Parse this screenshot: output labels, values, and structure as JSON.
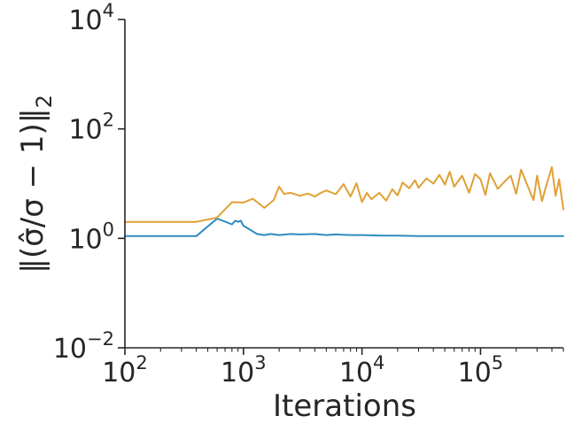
{
  "chart_data": {
    "type": "line",
    "title": "",
    "xlabel": "Iterations",
    "ylabel": "‖(σ̂/σ − 1)‖",
    "ylabel_subscript": "2",
    "xscale": "log",
    "yscale": "log",
    "xlim": [
      100,
      500000
    ],
    "ylim": [
      0.01,
      10000
    ],
    "grid": false,
    "legend": "none",
    "x_ticks": [
      {
        "value": 100,
        "base": "10",
        "exp": "2"
      },
      {
        "value": 1000,
        "base": "10",
        "exp": "3"
      },
      {
        "value": 10000,
        "base": "10",
        "exp": "4"
      },
      {
        "value": 100000,
        "base": "10",
        "exp": "5"
      }
    ],
    "y_ticks": [
      {
        "value": 0.01,
        "base": "10",
        "exp": "−2"
      },
      {
        "value": 1,
        "base": "10",
        "exp": "0"
      },
      {
        "value": 100,
        "base": "10",
        "exp": "2"
      },
      {
        "value": 10000,
        "base": "10",
        "exp": "4"
      }
    ],
    "series": [
      {
        "color": "#2e8bbf",
        "x": [
          100,
          400,
          600,
          800,
          850,
          900,
          950,
          1000,
          1100,
          1300,
          1500,
          1700,
          2000,
          2500,
          3000,
          4000,
          5000,
          6000,
          8000,
          10000,
          15000,
          20000,
          30000,
          50000,
          80000,
          100000,
          200000,
          300000,
          500000
        ],
        "y": [
          1.1,
          1.1,
          2.3,
          1.8,
          2.1,
          2.0,
          2.1,
          1.7,
          1.5,
          1.2,
          1.15,
          1.2,
          1.15,
          1.2,
          1.18,
          1.2,
          1.15,
          1.18,
          1.15,
          1.15,
          1.12,
          1.12,
          1.1,
          1.1,
          1.1,
          1.1,
          1.1,
          1.1,
          1.1
        ]
      },
      {
        "color": "#e0a035",
        "x": [
          100,
          400,
          600,
          800,
          1000,
          1200,
          1500,
          1800,
          2000,
          2200,
          2500,
          3000,
          3500,
          4000,
          4500,
          5000,
          6000,
          7000,
          8000,
          9000,
          10000,
          11000,
          12000,
          14000,
          16000,
          18000,
          20000,
          22000,
          25000,
          28000,
          30000,
          35000,
          40000,
          45000,
          50000,
          55000,
          60000,
          70000,
          80000,
          90000,
          100000,
          110000,
          120000,
          140000,
          160000,
          180000,
          200000,
          220000,
          250000,
          280000,
          300000,
          330000,
          360000,
          400000,
          430000,
          460000,
          500000
        ],
        "y": [
          2.0,
          2.0,
          2.4,
          4.6,
          4.5,
          5.3,
          3.6,
          5.0,
          8.8,
          6.5,
          6.8,
          6.0,
          6.6,
          5.8,
          6.8,
          7.5,
          6.4,
          9.8,
          5.8,
          10.2,
          4.6,
          6.8,
          5.2,
          6.8,
          4.9,
          7.9,
          6.1,
          10.5,
          8.2,
          11.5,
          8.4,
          12.5,
          10.0,
          14.5,
          9.6,
          16.5,
          8.8,
          14.0,
          6.8,
          15.0,
          12.0,
          6.2,
          15.5,
          8.0,
          11.0,
          14.0,
          6.5,
          18.0,
          9.0,
          5.0,
          14.0,
          4.8,
          9.5,
          20.0,
          6.0,
          12.0,
          3.4
        ]
      }
    ]
  }
}
